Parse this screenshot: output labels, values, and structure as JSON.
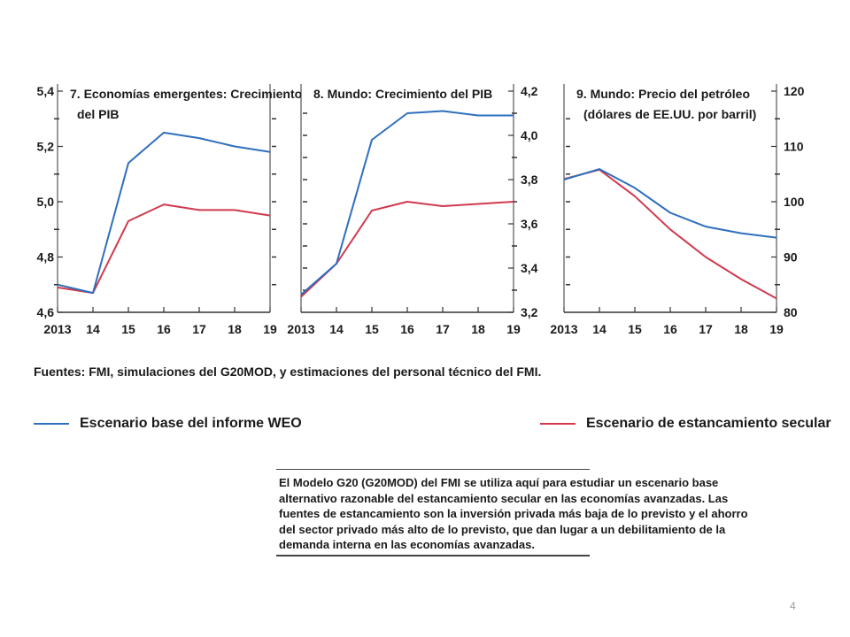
{
  "chart_data": [
    {
      "type": "line",
      "title": [
        "7. Economías emergentes: Crecimiento",
        "del PIB"
      ],
      "x": [
        "2013",
        "14",
        "15",
        "16",
        "17",
        "18",
        "19"
      ],
      "yticks": [
        "4,6",
        "4,8",
        "5,0",
        "5,2",
        "5,4"
      ],
      "ylim": [
        4.6,
        5.4
      ],
      "axis_side": "left",
      "series": [
        {
          "key": "base",
          "values": [
            4.7,
            4.67,
            5.14,
            5.25,
            5.23,
            5.2,
            5.18
          ]
        },
        {
          "key": "secular",
          "values": [
            4.69,
            4.67,
            4.93,
            4.99,
            4.97,
            4.97,
            4.95
          ]
        }
      ]
    },
    {
      "type": "line",
      "title": [
        "8. Mundo: Crecimiento del PIB"
      ],
      "x": [
        "2013",
        "14",
        "15",
        "16",
        "17",
        "18",
        "19"
      ],
      "yticks": [
        "3,2",
        "3,4",
        "3,6",
        "3,8",
        "4,0",
        "4,2"
      ],
      "ylim": [
        3.2,
        4.2
      ],
      "axis_side": "right",
      "series": [
        {
          "key": "base",
          "values": [
            3.28,
            3.42,
            3.98,
            4.1,
            4.11,
            4.09,
            4.09
          ]
        },
        {
          "key": "secular",
          "values": [
            3.27,
            3.42,
            3.66,
            3.7,
            3.68,
            3.69,
            3.7
          ]
        }
      ]
    },
    {
      "type": "line",
      "title": [
        "9. Mundo: Precio del petróleo",
        "(dólares de EE.UU. por barril)"
      ],
      "x": [
        "2013",
        "14",
        "15",
        "16",
        "17",
        "18",
        "19"
      ],
      "yticks": [
        "80",
        "90",
        "100",
        "110",
        "120"
      ],
      "ylim": [
        80,
        120
      ],
      "axis_side": "right",
      "series": [
        {
          "key": "base",
          "values": [
            104.0,
            105.9,
            102.5,
            98.0,
            95.5,
            94.3,
            93.5
          ]
        },
        {
          "key": "secular",
          "values": [
            104.1,
            105.8,
            101.0,
            95.0,
            90.0,
            86.0,
            82.5
          ]
        }
      ]
    }
  ],
  "colors": {
    "base": "#2e6fbd",
    "secular": "#d03a4e",
    "axis": "#333333"
  },
  "source": "Fuentes: FMI, simulaciones del G20MOD, y estimaciones del personal técnico del FMI.",
  "legend": {
    "base": "Escenario base del informe WEO",
    "secular": "Escenario de estancamiento secular"
  },
  "note": "El Modelo G20 (G20MOD) del FMI se utiliza aquí para estudiar un escenario base alternativo razonable del estancamiento secular en las economías avanzadas. Las fuentes de estancamiento son la inversión privada más baja de lo previsto y el ahorro del sector privado más alto de lo previsto, que dan lugar a un debilitamiento de la demanda interna en las economías avanzadas.",
  "page_number": "4"
}
